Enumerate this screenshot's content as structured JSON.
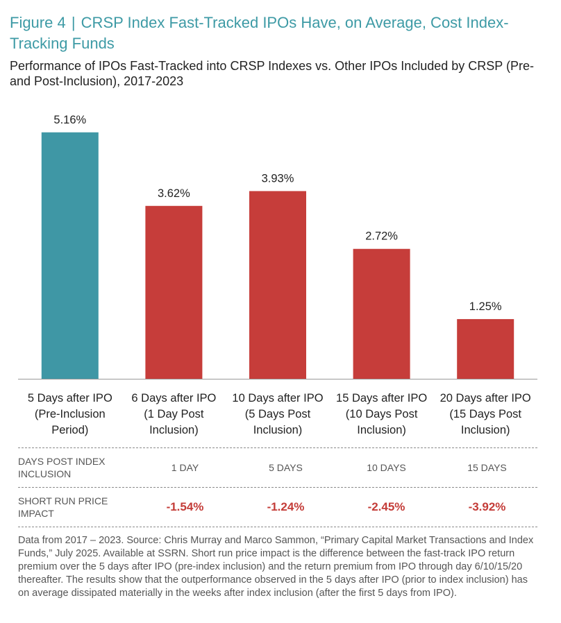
{
  "header": {
    "figure_label": "Figure 4",
    "title": "CRSP Index Fast-Tracked IPOs Have, on Average, Cost Index-Tracking Funds",
    "subtitle": "Performance of IPOs Fast-Tracked into CRSP Indexes vs. Other IPOs Included by CRSP (Pre- and Post-Inclusion), 2017-2023"
  },
  "colors": {
    "title": "#3d9aa5",
    "pre_bar": "#3f97a5",
    "post_bar": "#c63d3a",
    "negative_text": "#c43c38"
  },
  "chart_data": {
    "type": "bar",
    "categories": [
      [
        "5 Days after IPO",
        "(Pre-Inclusion",
        "Period)"
      ],
      [
        "6 Days after IPO",
        "(1 Day Post",
        "Inclusion)"
      ],
      [
        "10 Days after IPO",
        "(5 Days Post",
        "Inclusion)"
      ],
      [
        "15 Days after IPO",
        "(10 Days Post",
        "Inclusion)"
      ],
      [
        "20 Days after IPO",
        "(15 Days Post",
        "Inclusion)"
      ]
    ],
    "values": [
      5.16,
      3.62,
      3.93,
      2.72,
      1.25
    ],
    "value_labels": [
      "5.16%",
      "3.62%",
      "3.93%",
      "2.72%",
      "1.25%"
    ],
    "bar_colors": [
      "#3f97a5",
      "#c63d3a",
      "#c63d3a",
      "#c63d3a",
      "#c63d3a"
    ],
    "ylim": [
      0,
      5.2
    ],
    "grid": false,
    "legend": "none"
  },
  "table": {
    "rows": [
      {
        "header": "DAYS POST INDEX INCLUSION",
        "cells": [
          "1 DAY",
          "5 DAYS",
          "10 DAYS",
          "15 DAYS"
        ]
      },
      {
        "header": "SHORT RUN PRICE IMPACT",
        "cells": [
          "-1.54%",
          "-1.24%",
          "-2.45%",
          "-3.92%"
        ]
      }
    ]
  },
  "note": "Data from 2017 – 2023. Source: Chris Murray and Marco Sammon, “Primary Capital Market Transactions and Index Funds,” July 2025. Available at SSRN. Short run price impact is the difference between the fast-track IPO return premium over the 5 days after IPO (pre-index inclusion) and the return premium from IPO through day 6/10/15/20 thereafter. The results show that the outperformance observed in the 5 days after IPO (prior to index inclusion) has on average dissipated materially in the weeks after index inclusion (after the first 5 days from IPO)."
}
